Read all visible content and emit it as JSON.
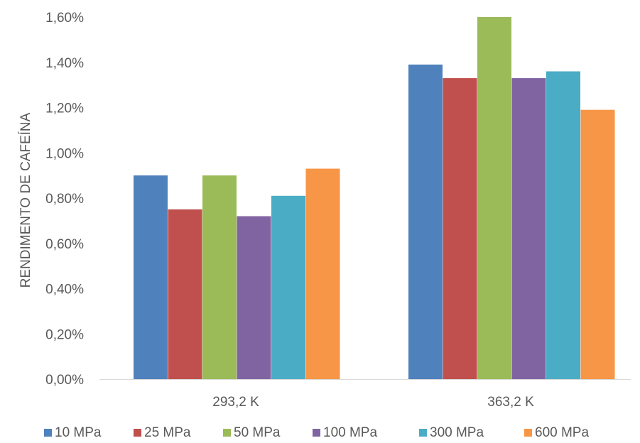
{
  "chart_data": {
    "type": "bar",
    "title": "",
    "xlabel": "",
    "ylabel": "RENDIMENTO DE CAFEÍNA",
    "categories": [
      "293,2 K",
      "363,2 K"
    ],
    "ylim": [
      0,
      1.6
    ],
    "yticks": [
      0,
      0.2,
      0.4,
      0.6,
      0.8,
      1.0,
      1.2,
      1.4,
      1.6
    ],
    "ytick_labels": [
      "0,00%",
      "0,20%",
      "0,40%",
      "0,60%",
      "0,80%",
      "1,00%",
      "1,20%",
      "1,40%",
      "1,60%"
    ],
    "grid": false,
    "legend": "bottom",
    "series": [
      {
        "name": "10 MPa",
        "color": "#4F81BD",
        "values": [
          0.9,
          1.39
        ]
      },
      {
        "name": "25 MPa",
        "color": "#C0504D",
        "values": [
          0.75,
          1.33
        ]
      },
      {
        "name": "50 MPa",
        "color": "#9BBB59",
        "values": [
          0.9,
          1.6
        ]
      },
      {
        "name": "100 MPa",
        "color": "#8064A2",
        "values": [
          0.72,
          1.33
        ]
      },
      {
        "name": "300 MPa",
        "color": "#4BACC6",
        "values": [
          0.81,
          1.36
        ]
      },
      {
        "name": "600 MPa",
        "color": "#F79646",
        "values": [
          0.93,
          1.19
        ]
      }
    ]
  }
}
